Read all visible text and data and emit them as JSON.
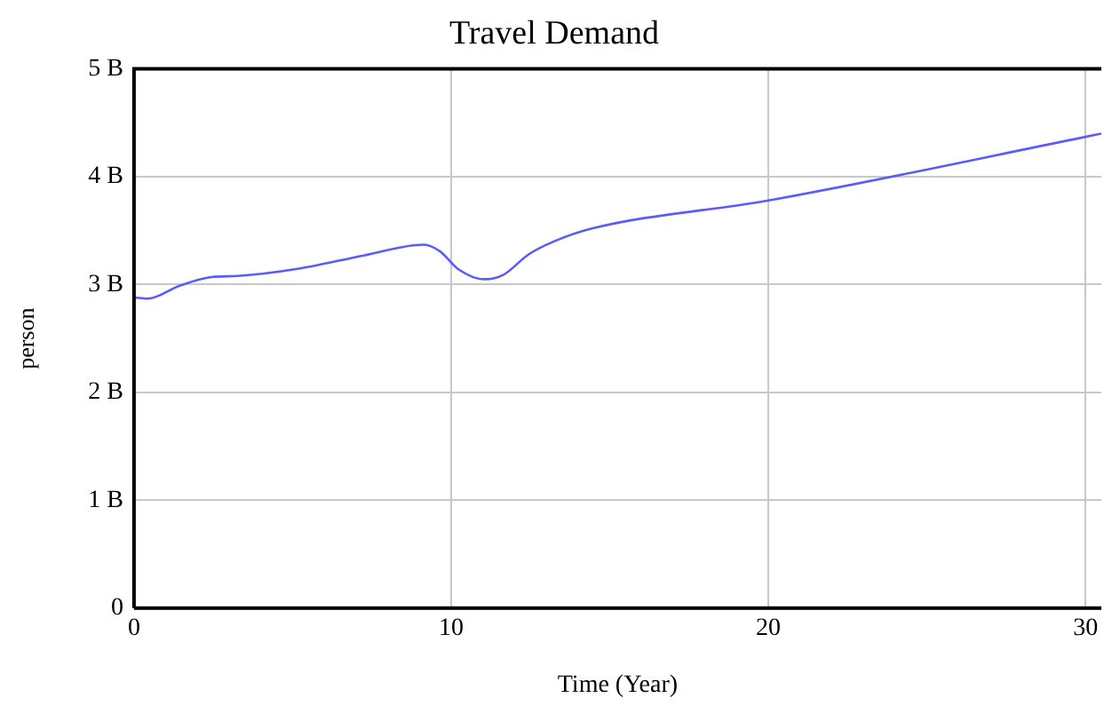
{
  "chart_data": {
    "type": "line",
    "title": "Travel Demand",
    "xlabel": "Time (Year)",
    "ylabel": "person",
    "x": [
      0,
      0.44,
      1.44,
      2.44,
      3.24,
      5.24,
      7.24,
      9.14,
      9.64,
      10.24,
      11.04,
      11.64,
      12.44,
      13.24,
      14.44,
      20,
      30,
      30.5
    ],
    "series": [
      {
        "color": "#5a5aff",
        "values": [
          2880000000,
          2870000000,
          2990000000,
          3070000000,
          3080000000,
          3150000000,
          3270000000,
          3370000000,
          3310000000,
          3140000000,
          3050000000,
          3090000000,
          3280000000,
          3400000000,
          3520000000,
          3780000000,
          4370000000,
          4400000000
        ]
      }
    ],
    "xlim": [
      0,
      30.5
    ],
    "xticks": [
      0,
      10,
      20,
      30
    ],
    "ylim": [
      0,
      5000000000
    ],
    "yticks": [
      {
        "value": 0,
        "label": "0"
      },
      {
        "value": 1000000000,
        "label": "1 B"
      },
      {
        "value": 2000000000,
        "label": "2 B"
      },
      {
        "value": 3000000000,
        "label": "3 B"
      },
      {
        "value": 4000000000,
        "label": "4 B"
      },
      {
        "value": 5000000000,
        "label": "5 B"
      }
    ],
    "grid": true,
    "legend": false,
    "marker": "none",
    "line_style": "solid"
  }
}
